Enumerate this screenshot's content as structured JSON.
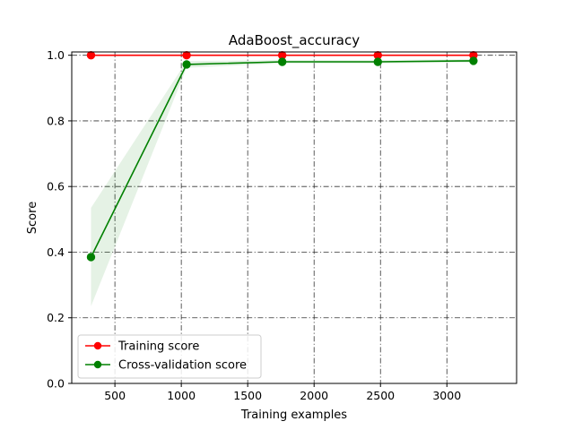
{
  "chart_data": {
    "type": "line",
    "title": "AdaBoost_accuracy",
    "xlabel": "Training examples",
    "ylabel": "Score",
    "xlim": [
      175,
      3525
    ],
    "ylim": [
      0.0,
      1.01
    ],
    "x_ticks": [
      500,
      1000,
      1500,
      2000,
      2500,
      3000
    ],
    "y_ticks": [
      0.0,
      0.2,
      0.4,
      0.6,
      0.8,
      1.0
    ],
    "y_tick_labels": [
      "0.0",
      "0.2",
      "0.4",
      "0.6",
      "0.8",
      "1.0"
    ],
    "grid": true,
    "legend_position": "lower-left",
    "x": [
      320,
      1040,
      1760,
      2480,
      3200
    ],
    "series": [
      {
        "name": "Training score",
        "color": "#ff0000",
        "values": [
          1.0,
          1.0,
          1.0,
          1.0,
          1.0
        ],
        "band_lower": [
          1.0,
          1.0,
          1.0,
          1.0,
          1.0
        ],
        "band_upper": [
          1.0,
          1.0,
          1.0,
          1.0,
          1.0
        ]
      },
      {
        "name": "Cross-validation score",
        "color": "#008000",
        "values": [
          0.385,
          0.972,
          0.98,
          0.98,
          0.983
        ],
        "band_lower": [
          0.235,
          0.962,
          0.975,
          0.975,
          0.978
        ],
        "band_upper": [
          0.535,
          0.982,
          0.985,
          0.985,
          0.988
        ]
      }
    ]
  }
}
